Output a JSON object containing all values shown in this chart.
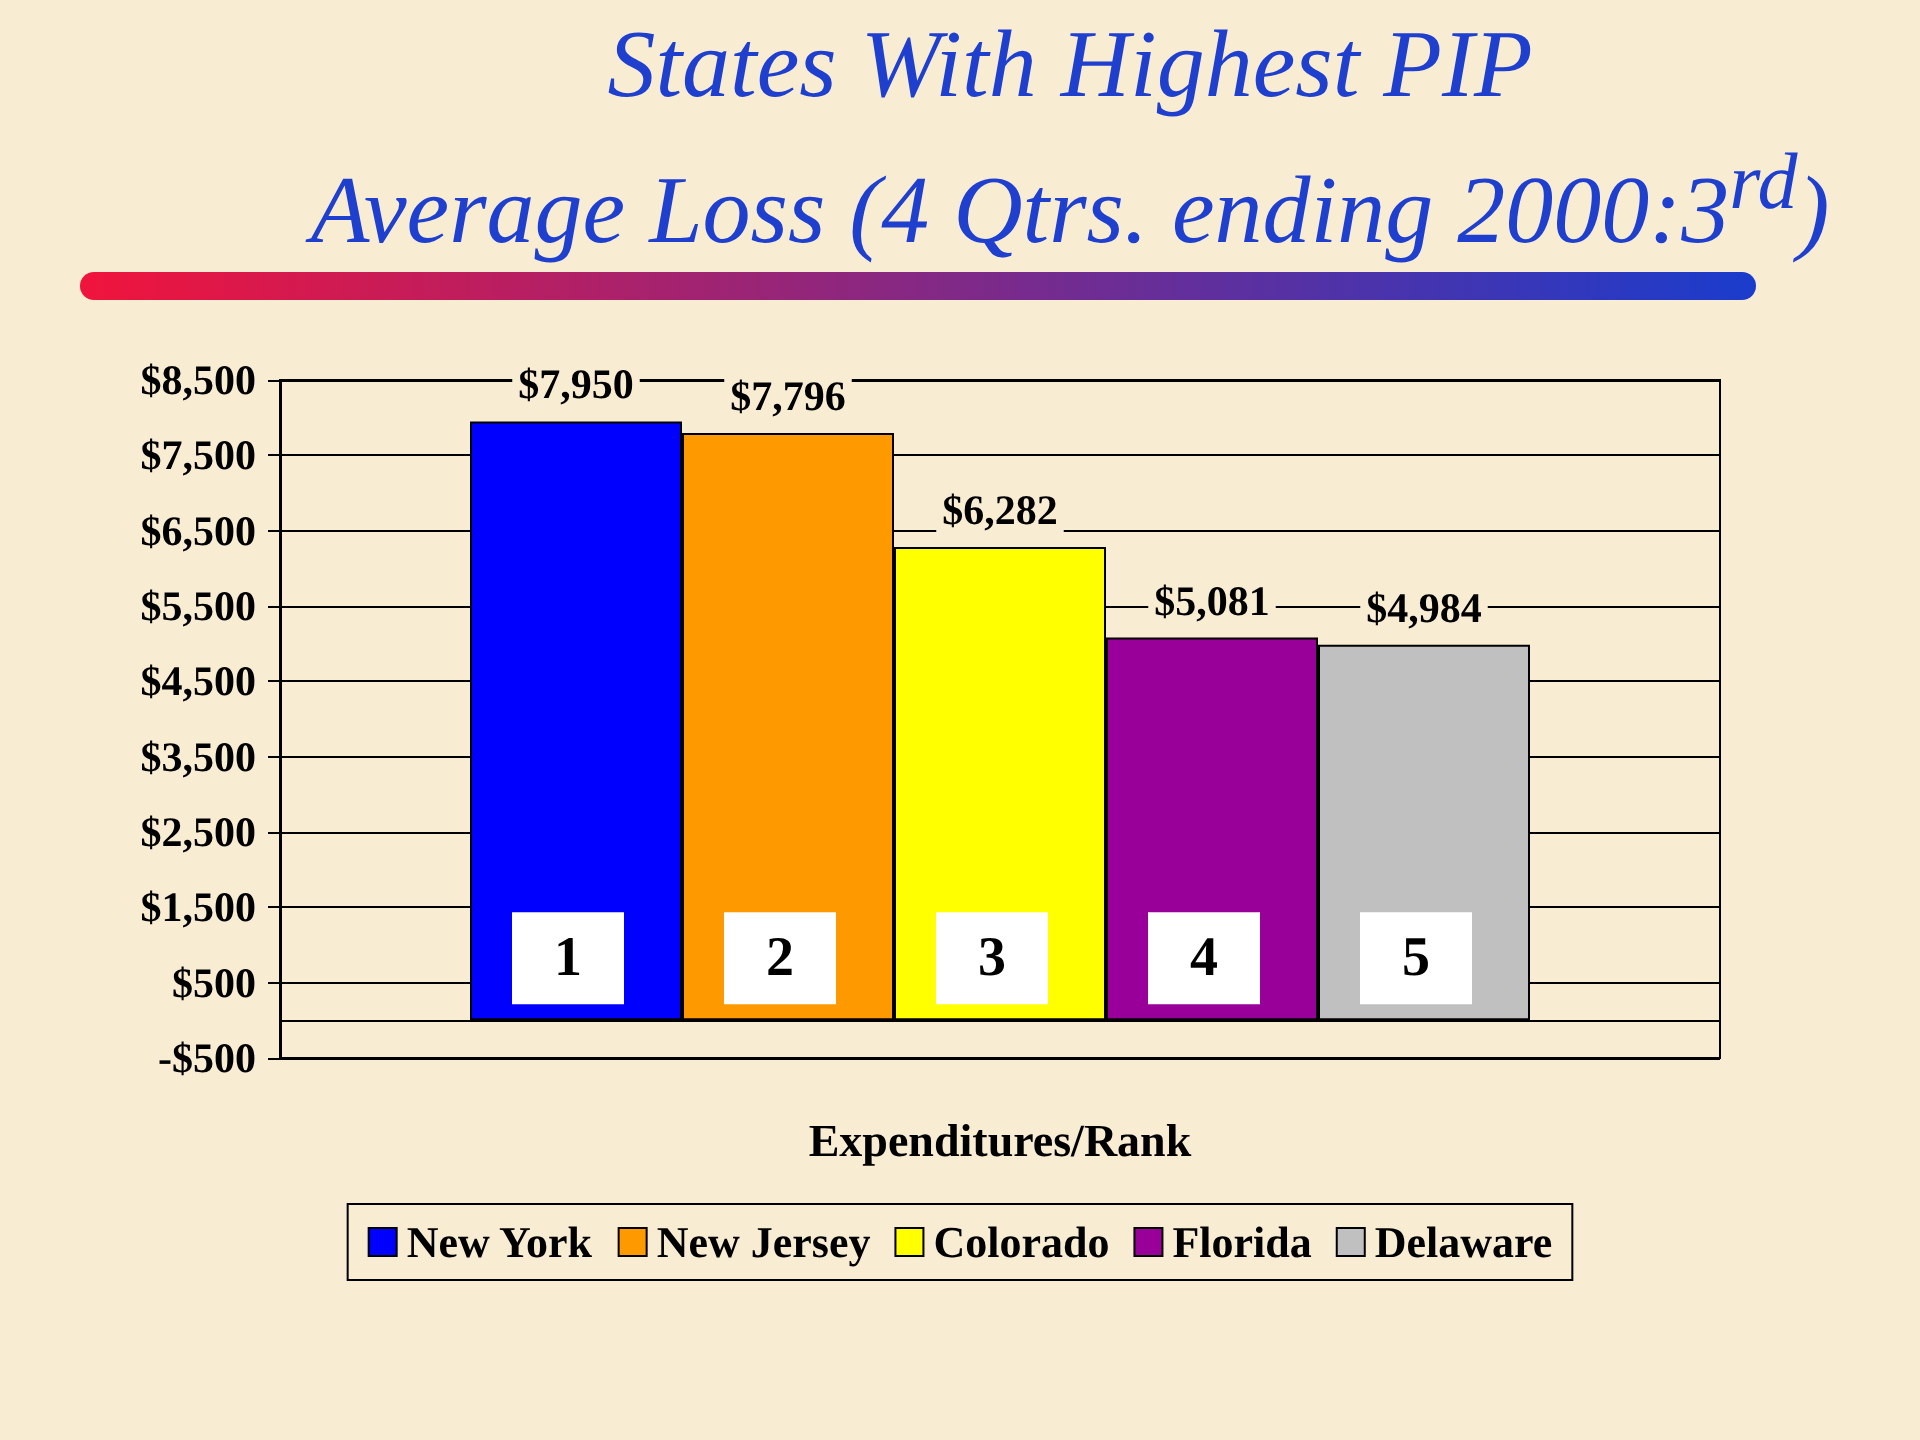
{
  "chart_data": {
    "type": "bar",
    "title": "States With Highest PIP\nAverage Loss (4 Qtrs. ending 2000:3$^{rd}$)",
    "xlabel": "Expenditures/Rank",
    "categories": [
      null
    ],
    "series": [
      {
        "name": "New York",
        "color": "#0000ff",
        "values": [
          7950
        ],
        "value_labels": [
          "$7,950"
        ]
      },
      {
        "name": "New Jersey",
        "color": "#ff9900",
        "values": [
          7796
        ],
        "value_labels": [
          "$7,796"
        ]
      },
      {
        "name": "Colorado",
        "color": "#ffff00",
        "values": [
          6282
        ],
        "value_labels": [
          "$6,282"
        ]
      },
      {
        "name": "Florida",
        "color": "#990099",
        "values": [
          5081
        ],
        "value_labels": [
          "$5,081"
        ]
      },
      {
        "name": "Delaware",
        "color": "#c0c0c0",
        "values": [
          4984
        ],
        "value_labels": [
          "$4,984"
        ]
      }
    ],
    "ylim": [
      -500,
      8500
    ],
    "yticks": [
      {
        "value": -500,
        "label": "-$500"
      },
      {
        "value": 500,
        "label": "$500"
      },
      {
        "value": 1500,
        "label": "$1,500"
      },
      {
        "value": 2500,
        "label": "$2,500"
      },
      {
        "value": 3500,
        "label": "$3,500"
      },
      {
        "value": 4500,
        "label": "$4,500"
      },
      {
        "value": 5500,
        "label": "$5,500"
      },
      {
        "value": 6500,
        "label": "$6,500"
      },
      {
        "value": 7500,
        "label": "$7,500"
      },
      {
        "value": 8500,
        "label": "$8,500"
      }
    ],
    "grid": "y",
    "legend": "bottom",
    "annotations": [
      "1",
      "2",
      "3",
      "4",
      "5"
    ]
  }
}
